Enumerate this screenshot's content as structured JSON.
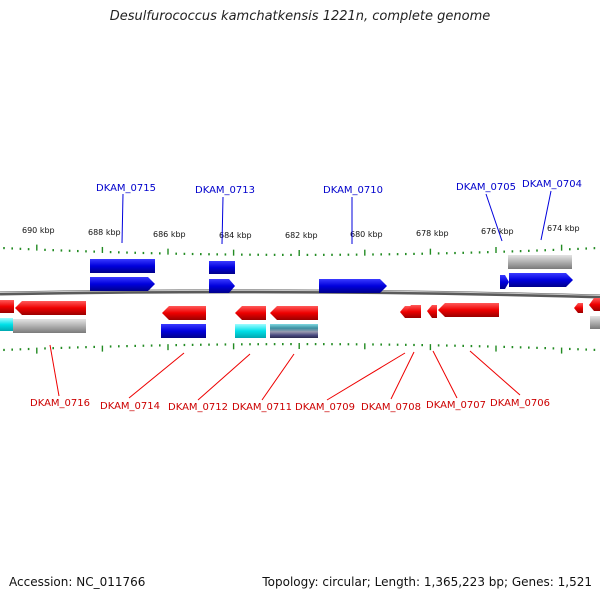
{
  "title": "Desulfurococcus kamchatkensis 1221n, complete genome",
  "footer": {
    "accession": "Accession: NC_011766",
    "info": "Topology: circular; Length: 1,365,223 bp; Genes: 1,521"
  },
  "colors": {
    "forward_strand": "#0000dd",
    "reverse_strand": "#ee0000",
    "backbone": "#888888",
    "ticks": "#228b22",
    "grey_feature": "#a8a8a8",
    "cyan_feature": "#00e0e8"
  },
  "scale_labels": [
    "690 kbp",
    "688 kbp",
    "686 kbp",
    "684 kbp",
    "682 kbp",
    "680 kbp",
    "678 kbp",
    "676 kbp",
    "674 kbp"
  ],
  "upper_gene_labels": [
    "DKAM_0715",
    "DKAM_0713",
    "DKAM_0710",
    "DKAM_0705",
    "DKAM_0704"
  ],
  "lower_gene_labels": [
    "DKAM_0716",
    "DKAM_0714",
    "DKAM_0712",
    "DKAM_0711",
    "DKAM_0709",
    "DKAM_0708",
    "DKAM_0707",
    "DKAM_0706"
  ]
}
